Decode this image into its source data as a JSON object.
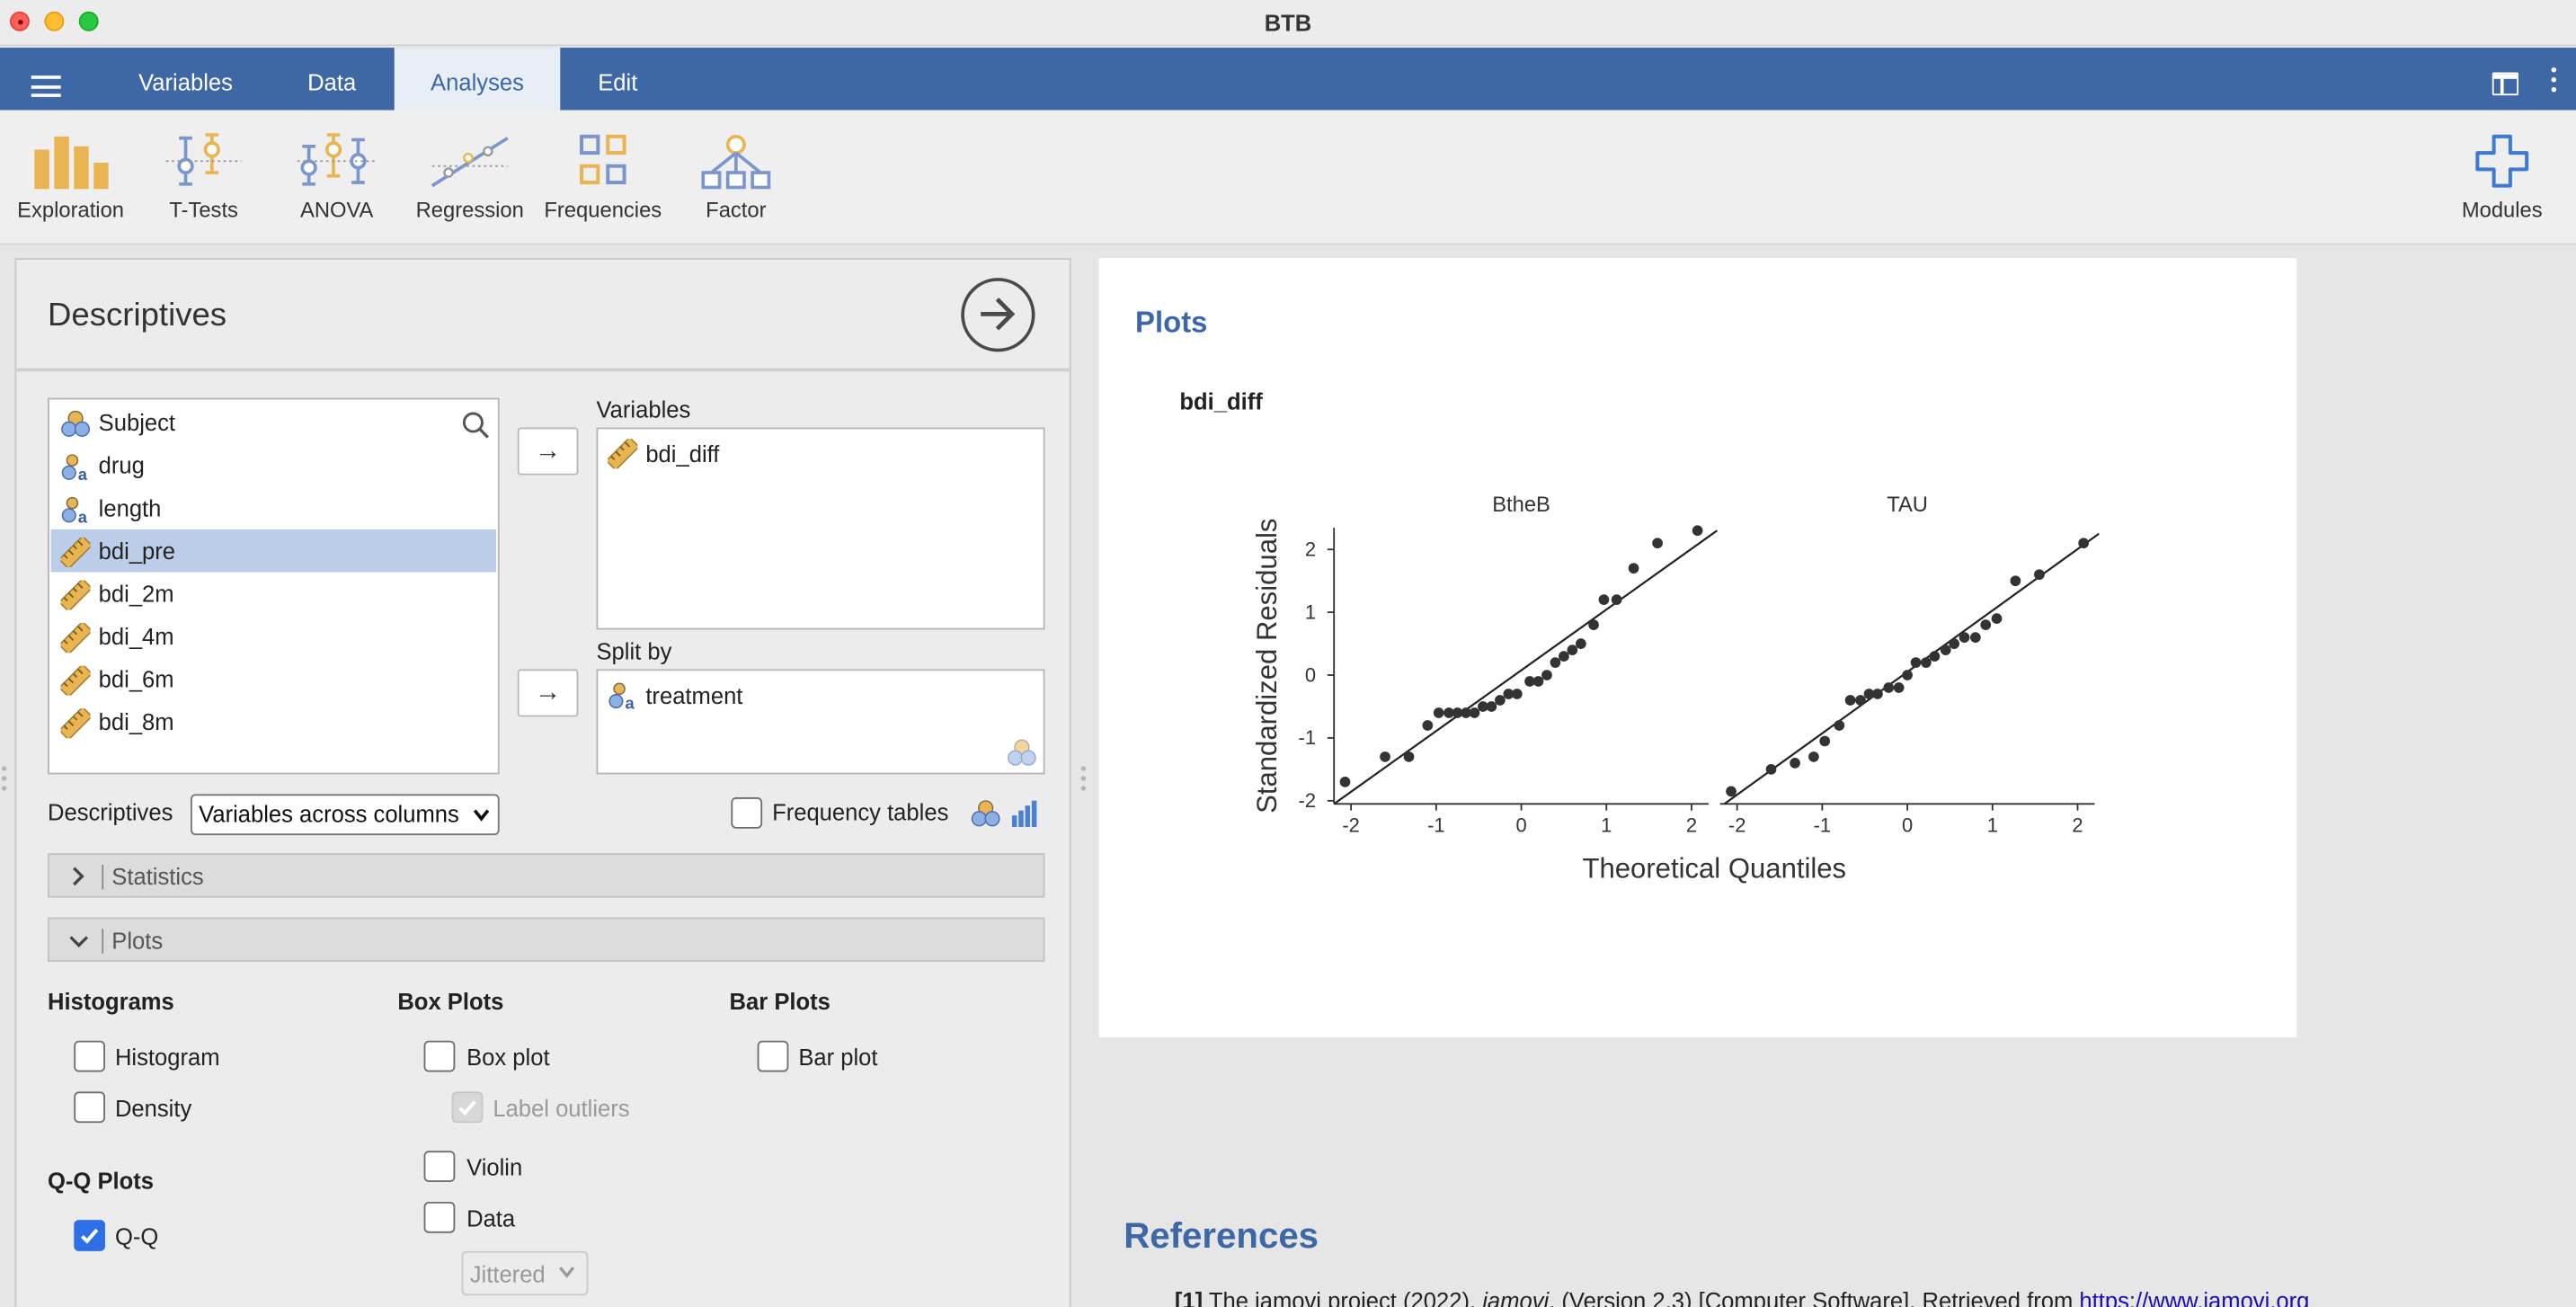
{
  "window": {
    "title": "BTB"
  },
  "tabs": [
    {
      "label": "Variables"
    },
    {
      "label": "Data"
    },
    {
      "label": "Analyses",
      "active": true
    },
    {
      "label": "Edit"
    }
  ],
  "ribbon": {
    "items": [
      {
        "label": "Exploration",
        "icon": "exploration-icon"
      },
      {
        "label": "T-Tests",
        "icon": "t-tests-icon"
      },
      {
        "label": "ANOVA",
        "icon": "anova-icon"
      },
      {
        "label": "Regression",
        "icon": "regression-icon"
      },
      {
        "label": "Frequencies",
        "icon": "frequencies-icon"
      },
      {
        "label": "Factor",
        "icon": "factor-icon"
      }
    ],
    "modules_label": "Modules"
  },
  "analysis": {
    "title": "Descriptives",
    "variables": [
      {
        "name": "Subject",
        "type": "id"
      },
      {
        "name": "drug",
        "type": "nominal-text"
      },
      {
        "name": "length",
        "type": "nominal-text"
      },
      {
        "name": "bdi_pre",
        "type": "continuous",
        "selected": true
      },
      {
        "name": "bdi_2m",
        "type": "continuous"
      },
      {
        "name": "bdi_4m",
        "type": "continuous"
      },
      {
        "name": "bdi_6m",
        "type": "continuous"
      },
      {
        "name": "bdi_8m",
        "type": "continuous"
      }
    ],
    "variables_label": "Variables",
    "variables_assigned": [
      "bdi_diff"
    ],
    "split_by_label": "Split by",
    "split_by_assigned": [
      "treatment"
    ],
    "descriptives_label": "Descriptives",
    "descriptives_option": "Variables across columns",
    "frequency_tables_label": "Frequency tables",
    "frequency_tables_checked": false,
    "sections": {
      "statistics": "Statistics",
      "plots": "Plots"
    },
    "plots": {
      "histograms_heading": "Histograms",
      "histogram_label": "Histogram",
      "histogram_checked": false,
      "density_label": "Density",
      "density_checked": false,
      "box_plots_heading": "Box Plots",
      "box_plot_label": "Box plot",
      "box_plot_checked": false,
      "label_outliers_label": "Label outliers",
      "label_outliers_checked": true,
      "violin_label": "Violin",
      "violin_checked": false,
      "data_label": "Data",
      "data_checked": false,
      "data_style": "Jittered",
      "bar_plots_heading": "Bar Plots",
      "bar_plot_label": "Bar plot",
      "bar_plot_checked": false,
      "qq_heading": "Q-Q Plots",
      "qq_label": "Q-Q",
      "qq_checked": true
    }
  },
  "results": {
    "heading": "Plots",
    "variable": "bdi_diff",
    "chart_data": {
      "type": "scatter",
      "xlabel": "Theoretical Quantiles",
      "ylabel": "Standardized Residuals",
      "xlim": [
        -2.2,
        2.2
      ],
      "ylim": [
        -2.05,
        2.45
      ],
      "xticks": [
        "-2",
        "-1",
        "0",
        "1",
        "2"
      ],
      "yticks": [
        "-2",
        "-1",
        "0",
        "1",
        "2"
      ],
      "panels": [
        {
          "name": "BtheB",
          "points": [
            [
              -2.07,
              -1.7
            ],
            [
              -1.6,
              -1.3
            ],
            [
              -1.32,
              -1.3
            ],
            [
              -1.1,
              -0.8
            ],
            [
              -0.97,
              -0.6
            ],
            [
              -0.85,
              -0.6
            ],
            [
              -0.75,
              -0.6
            ],
            [
              -0.65,
              -0.6
            ],
            [
              -0.55,
              -0.6
            ],
            [
              -0.45,
              -0.5
            ],
            [
              -0.35,
              -0.5
            ],
            [
              -0.25,
              -0.4
            ],
            [
              -0.15,
              -0.3
            ],
            [
              -0.05,
              -0.3
            ],
            [
              0.1,
              -0.1
            ],
            [
              0.2,
              -0.1
            ],
            [
              0.3,
              0.0
            ],
            [
              0.4,
              0.2
            ],
            [
              0.5,
              0.3
            ],
            [
              0.6,
              0.4
            ],
            [
              0.7,
              0.5
            ],
            [
              0.85,
              0.8
            ],
            [
              0.97,
              1.2
            ],
            [
              1.12,
              1.2
            ],
            [
              1.32,
              1.7
            ],
            [
              1.6,
              2.1
            ],
            [
              2.07,
              2.3
            ]
          ],
          "line": [
            [
              -2.2,
              -2.05
            ],
            [
              2.3,
              2.3
            ]
          ]
        },
        {
          "name": "TAU",
          "points": [
            [
              -2.07,
              -1.85
            ],
            [
              -1.6,
              -1.5
            ],
            [
              -1.32,
              -1.4
            ],
            [
              -1.1,
              -1.3
            ],
            [
              -0.97,
              -1.05
            ],
            [
              -0.8,
              -0.8
            ],
            [
              -0.67,
              -0.4
            ],
            [
              -0.55,
              -0.4
            ],
            [
              -0.45,
              -0.3
            ],
            [
              -0.35,
              -0.3
            ],
            [
              -0.22,
              -0.2
            ],
            [
              -0.1,
              -0.2
            ],
            [
              0.0,
              0.0
            ],
            [
              0.1,
              0.2
            ],
            [
              0.22,
              0.2
            ],
            [
              0.32,
              0.3
            ],
            [
              0.45,
              0.4
            ],
            [
              0.55,
              0.5
            ],
            [
              0.67,
              0.6
            ],
            [
              0.8,
              0.6
            ],
            [
              0.92,
              0.8
            ],
            [
              1.05,
              0.9
            ],
            [
              1.27,
              1.5
            ],
            [
              1.55,
              1.6
            ],
            [
              2.07,
              2.1
            ]
          ],
          "line": [
            [
              -2.15,
              -2.05
            ],
            [
              2.25,
              2.25
            ]
          ]
        }
      ]
    },
    "references_heading": "References",
    "references": [
      {
        "num": "[1]",
        "text_before": "The jamovi project (2022).",
        "title": "jamovi",
        "text_after": ". (Version 2.3) [Computer Software]. Retrieved from",
        "url": "https://www.jamovi.org"
      }
    ]
  }
}
